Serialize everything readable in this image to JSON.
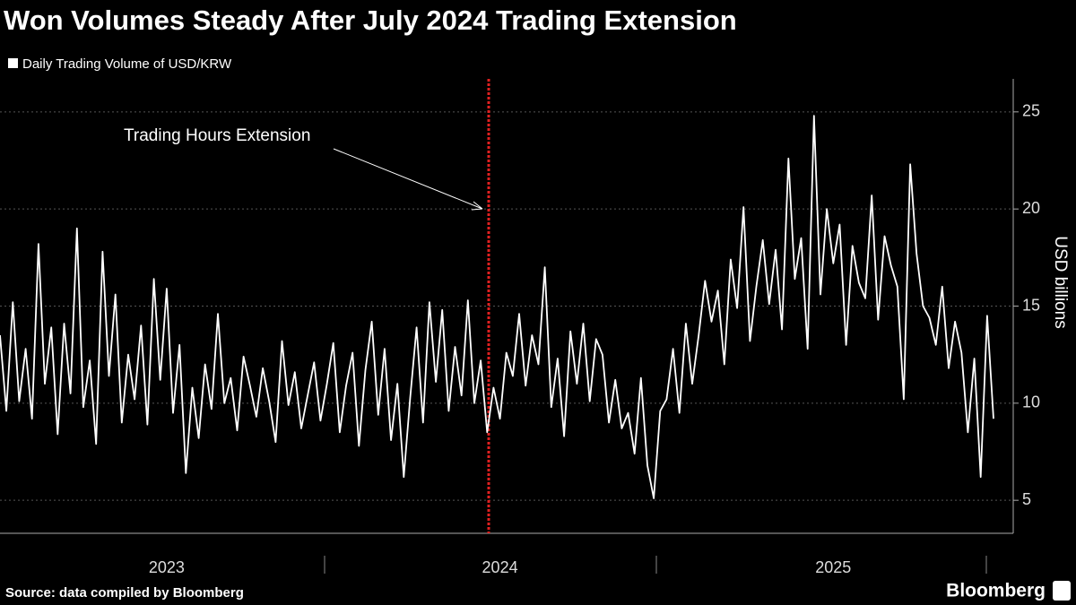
{
  "chart_data": {
    "type": "line",
    "title": "Won Volumes Steady After July 2024 Trading Extension",
    "y_axis_label": "USD billions",
    "annotation": "Trading Hours Extension",
    "source": "Source: data compiled by Bloomberg",
    "brand": "Bloomberg",
    "categories": [
      null,
      null,
      null,
      null,
      null,
      null,
      null,
      null,
      null,
      null,
      null,
      null,
      null,
      null,
      null,
      null,
      null,
      null,
      null,
      null,
      null,
      null,
      null,
      null,
      null,
      null,
      "2023",
      null,
      null,
      null,
      null,
      null,
      null,
      null,
      null,
      null,
      null,
      null,
      null,
      null,
      null,
      null,
      null,
      null,
      null,
      null,
      null,
      null,
      null,
      null,
      null,
      null,
      null,
      null,
      null,
      null,
      null,
      null,
      null,
      null,
      null,
      null,
      null,
      null,
      null,
      null,
      null,
      null,
      null,
      null,
      null,
      null,
      null,
      null,
      null,
      null,
      null,
      null,
      "2024",
      null,
      null,
      null,
      null,
      null,
      null,
      null,
      null,
      null,
      null,
      null,
      null,
      null,
      null,
      null,
      null,
      null,
      null,
      null,
      null,
      null,
      null,
      null,
      null,
      null,
      null,
      null,
      null,
      null,
      null,
      null,
      null,
      null,
      null,
      null,
      null,
      null,
      null,
      null,
      null,
      null,
      null,
      null,
      null,
      null,
      null,
      null,
      null,
      null,
      null,
      null,
      "2025",
      null,
      null,
      null,
      null,
      null,
      null,
      null,
      null,
      null,
      null,
      null,
      null,
      null,
      null,
      null,
      null,
      null,
      null,
      null,
      null,
      null,
      null,
      null,
      null,
      null
    ],
    "series": [
      {
        "name": "Daily Trading Volume of USD/KRW",
        "color": "#ffffff",
        "values": [
          13.5,
          9.6,
          15.2,
          10.1,
          12.8,
          9.2,
          18.2,
          11.0,
          13.9,
          8.4,
          14.1,
          10.5,
          19.0,
          9.8,
          12.2,
          7.9,
          17.8,
          11.4,
          15.6,
          9.0,
          12.5,
          10.2,
          14.0,
          8.9,
          16.4,
          11.2,
          15.9,
          9.5,
          13.0,
          6.4,
          10.8,
          8.2,
          12.0,
          9.7,
          14.6,
          10.0,
          11.3,
          8.6,
          12.4,
          10.9,
          9.3,
          11.8,
          10.1,
          8.0,
          13.2,
          9.9,
          11.6,
          8.7,
          10.4,
          12.1,
          9.1,
          11.0,
          13.1,
          8.5,
          10.9,
          12.6,
          7.8,
          11.7,
          14.2,
          9.4,
          12.8,
          8.1,
          11.0,
          6.2,
          10.3,
          13.9,
          9.0,
          15.2,
          11.1,
          14.8,
          9.6,
          12.9,
          10.4,
          15.3,
          10.0,
          12.2,
          8.5,
          10.8,
          9.2,
          12.6,
          11.4,
          14.6,
          10.9,
          13.5,
          12.0,
          17.0,
          9.8,
          12.3,
          8.3,
          13.7,
          11.0,
          14.1,
          10.1,
          13.3,
          12.5,
          9.0,
          11.2,
          8.7,
          9.5,
          7.4,
          11.3,
          6.8,
          5.1,
          9.6,
          10.2,
          12.8,
          9.5,
          14.1,
          11.0,
          13.5,
          16.3,
          14.2,
          15.8,
          12.0,
          17.4,
          14.9,
          20.1,
          13.2,
          16.0,
          18.4,
          15.1,
          17.9,
          13.8,
          22.6,
          16.4,
          18.5,
          12.8,
          24.8,
          15.6,
          20.0,
          17.2,
          19.2,
          13.0,
          18.1,
          16.2,
          15.4,
          20.7,
          14.3,
          18.6,
          17.1,
          16.0,
          10.2,
          22.3,
          17.7,
          15.0,
          14.4,
          13.0,
          16.0,
          11.8,
          14.2,
          12.6,
          8.5,
          12.3,
          6.2,
          14.5,
          9.2
        ]
      }
    ],
    "ylim": [
      3.3,
      26.7
    ],
    "yticks": [
      5,
      10,
      15,
      20,
      25
    ],
    "grid": true
  }
}
